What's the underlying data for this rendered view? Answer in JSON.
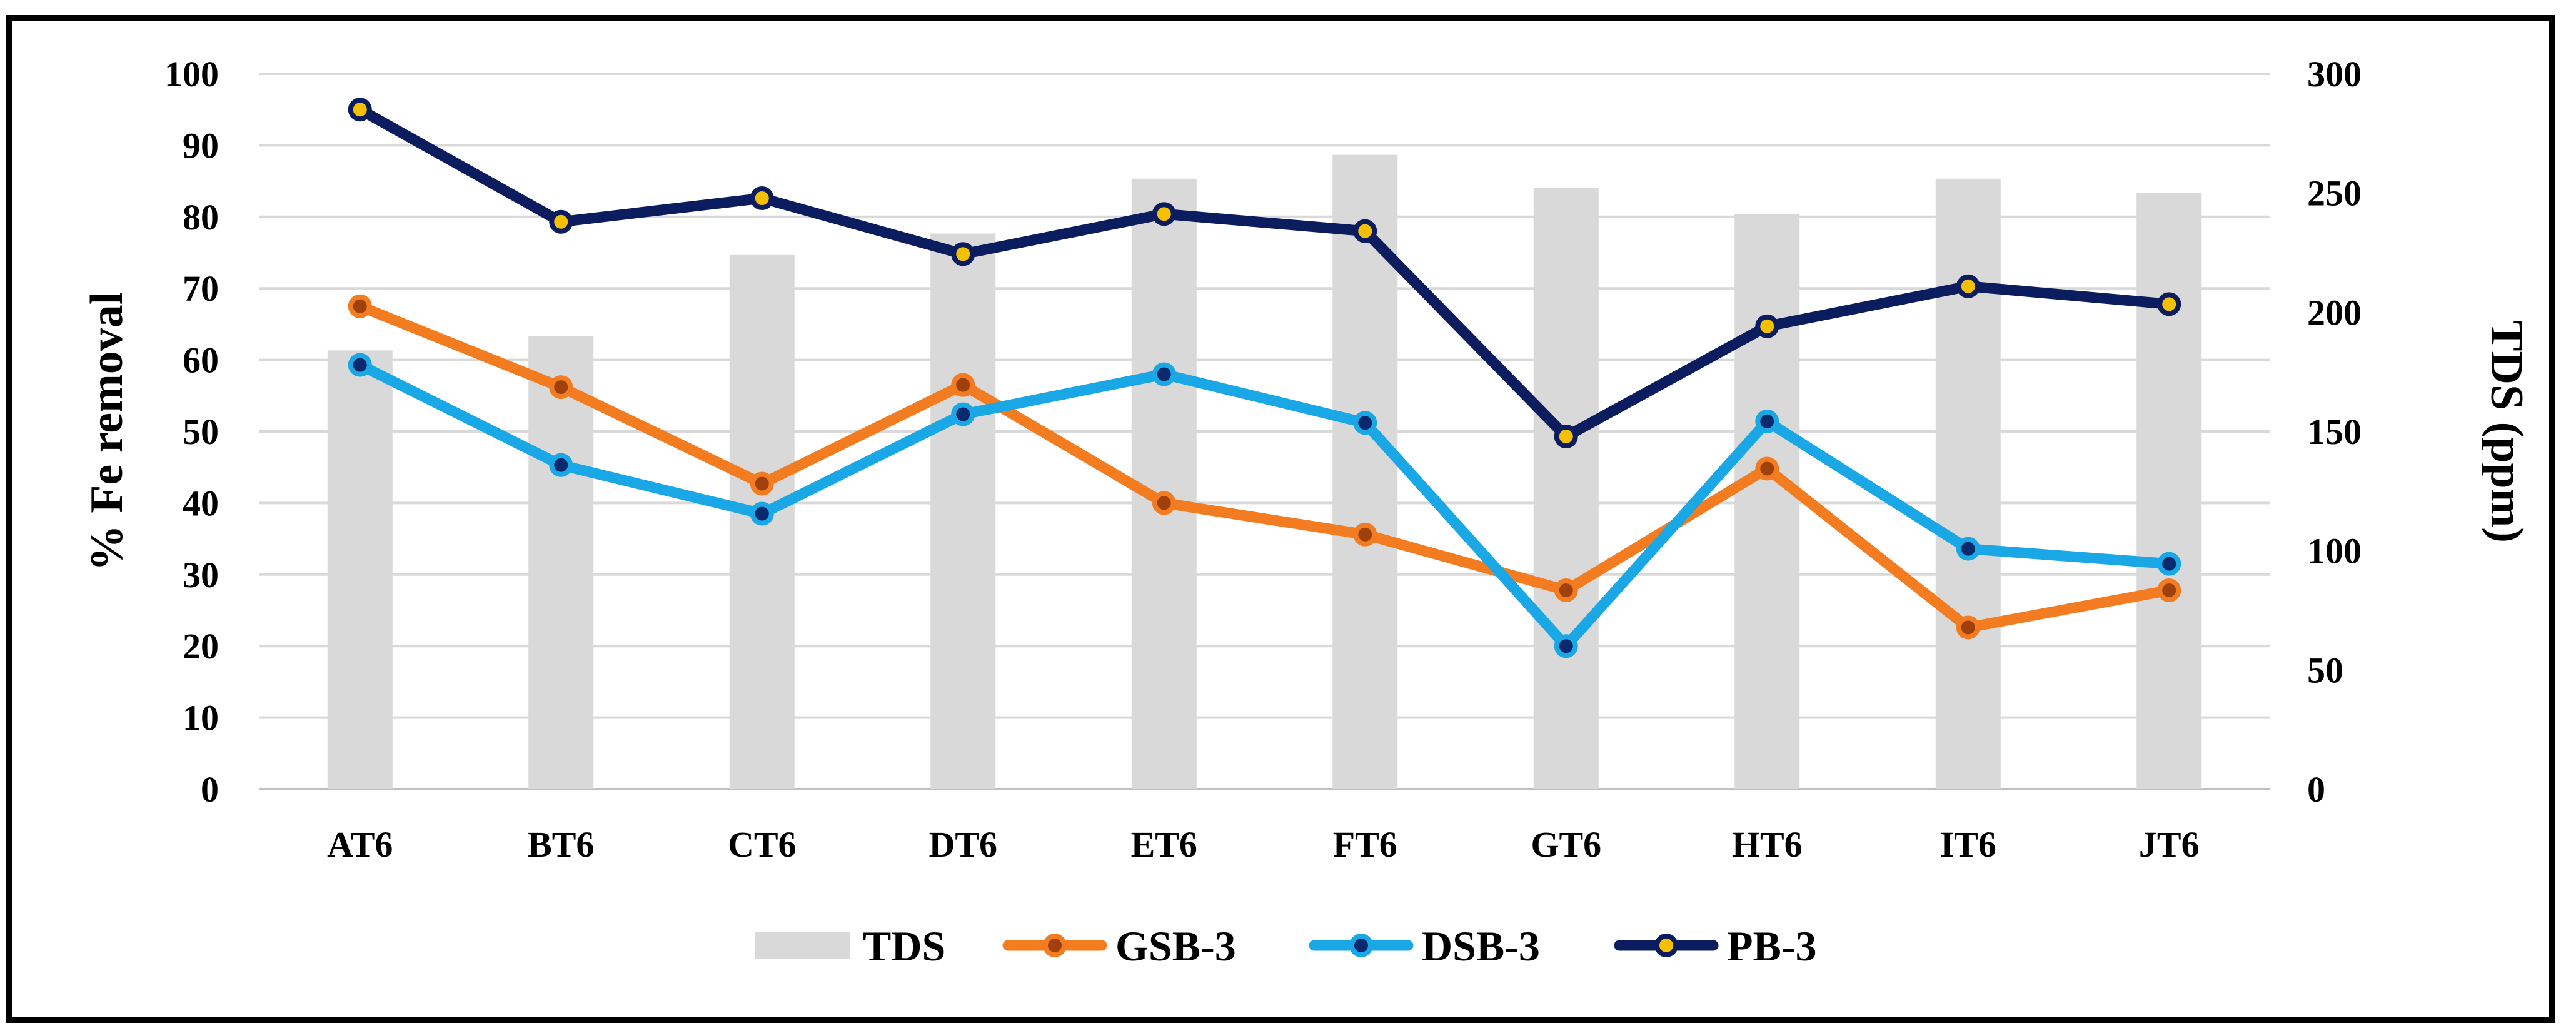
{
  "chart_data": {
    "type": "bar+line",
    "categories": [
      "AT6",
      "BT6",
      "CT6",
      "DT6",
      "ET6",
      "FT6",
      "GT6",
      "HT6",
      "IT6",
      "JT6"
    ],
    "bars": {
      "name": "TDS",
      "axis": "right",
      "color": "#d9d9d9",
      "values": [
        184,
        190,
        224,
        233,
        256,
        266,
        252,
        241,
        256,
        250
      ]
    },
    "series": [
      {
        "name": "GSB-3",
        "axis": "left",
        "color": "#f47c20",
        "marker": "#a0410d",
        "values": [
          67.5,
          56.2,
          42.7,
          56.5,
          40.0,
          35.6,
          27.8,
          44.8,
          22.6,
          27.8
        ]
      },
      {
        "name": "DSB-3",
        "axis": "left",
        "color": "#1aa7e6",
        "marker": "#0b2a6e",
        "values": [
          59.3,
          45.3,
          38.5,
          52.4,
          58.0,
          51.2,
          20.0,
          51.4,
          33.6,
          31.5
        ]
      },
      {
        "name": "PB-3",
        "axis": "left",
        "color": "#0b1d5e",
        "marker": "#f5c000",
        "values": [
          95.0,
          79.3,
          82.6,
          74.8,
          80.4,
          78.0,
          49.3,
          64.7,
          70.3,
          67.8
        ]
      }
    ],
    "ylabel": "% Fe removal",
    "ylim": [
      0,
      100
    ],
    "yticks": [
      "0",
      "10",
      "20",
      "30",
      "40",
      "50",
      "60",
      "70",
      "80",
      "90",
      "100"
    ],
    "y2label": "TDS (ppm)",
    "y2lim": [
      0,
      300
    ],
    "y2ticks": [
      "0",
      "50",
      "100",
      "150",
      "200",
      "250",
      "300"
    ],
    "grid": true,
    "legend": "bottom",
    "legend_order": [
      "TDS",
      "GSB-3",
      "DSB-3",
      "PB-3"
    ]
  }
}
